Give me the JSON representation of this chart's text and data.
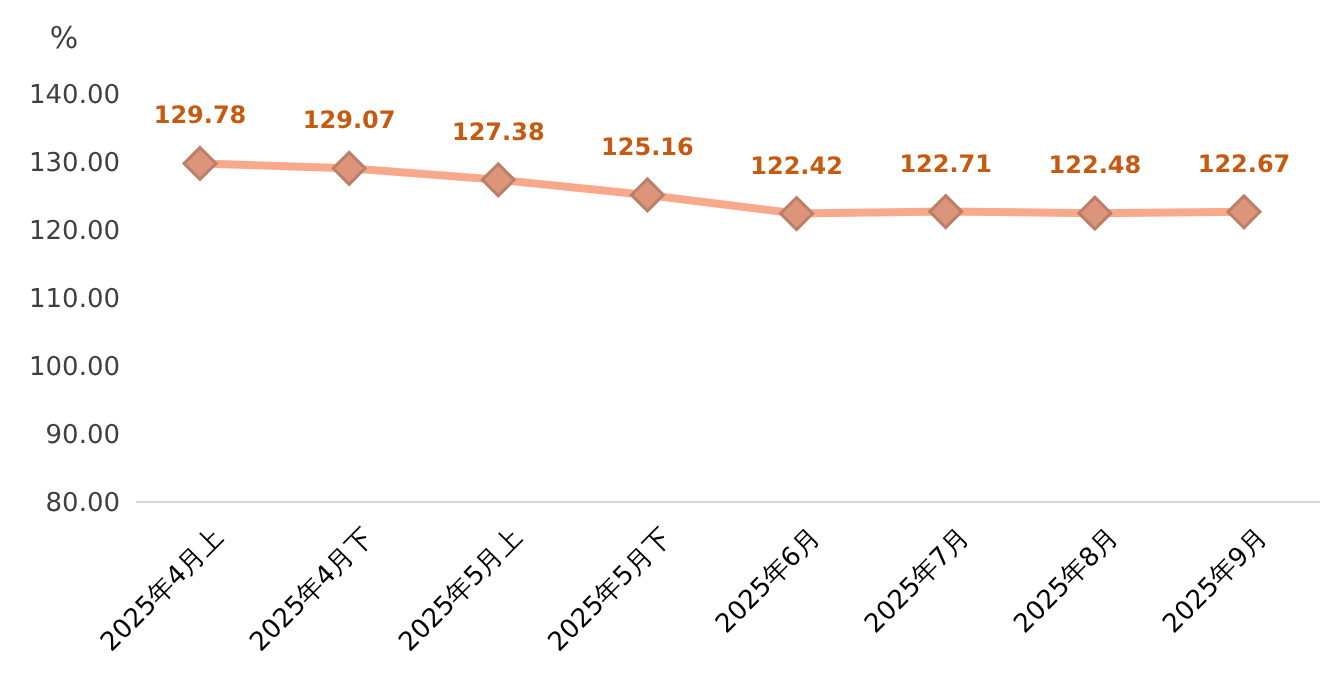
{
  "chart_data": {
    "type": "line",
    "ylabel": "%",
    "categories": [
      "2025年4月上",
      "2025年4月下",
      "2025年5月上",
      "2025年5月下",
      "2025年6月",
      "2025年7月",
      "2025年8月",
      "2025年9月"
    ],
    "series": [
      {
        "color": "#f9a98b",
        "values": [
          129.78,
          129.07,
          127.38,
          125.16,
          122.42,
          122.71,
          122.48,
          122.67
        ]
      }
    ],
    "ylim": [
      80,
      140
    ],
    "yticks": [
      {
        "value": 80,
        "label": "80.00"
      },
      {
        "value": 90,
        "label": "90.00"
      },
      {
        "value": 100,
        "label": "100.00"
      },
      {
        "value": 110,
        "label": "110.00"
      },
      {
        "value": 120,
        "label": "120.00"
      },
      {
        "value": 130,
        "label": "130.00"
      },
      {
        "value": 140,
        "label": "140.00"
      }
    ],
    "grid": false,
    "data_labels": true,
    "marker": "diamond",
    "line_style": "solid"
  }
}
